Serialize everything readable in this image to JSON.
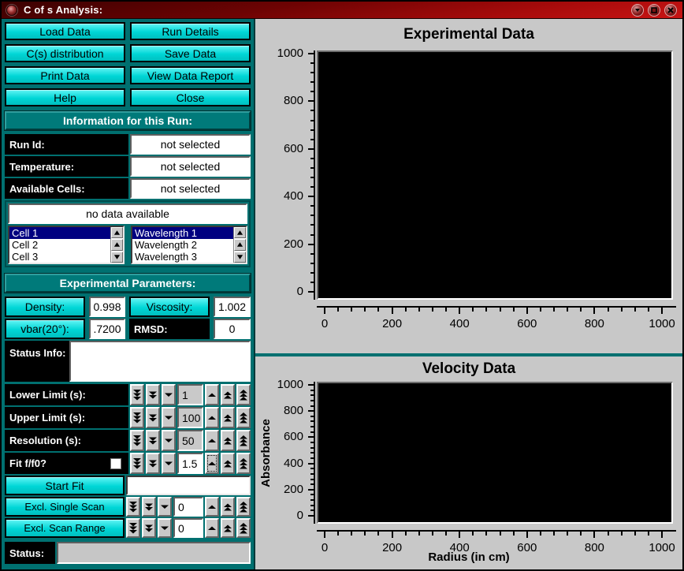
{
  "window": {
    "title": "C of s Analysis:",
    "controls": [
      {
        "icon": "shade-icon"
      },
      {
        "icon": "maximize-icon"
      },
      {
        "icon": "close-icon"
      }
    ]
  },
  "colors": {
    "titlebar_red": "#a80b0b",
    "panel_teal": "#007070",
    "button_cyan": "#00d6d6",
    "selection_navy": "#000080",
    "canvas_black": "#000000",
    "window_gray": "#c8c8c8"
  },
  "toolbar": {
    "buttons": [
      "Load Data",
      "Run Details",
      "C(s) distribution",
      "Save Data",
      "Print Data",
      "View Data Report",
      "Help",
      "Close"
    ]
  },
  "run_info": {
    "header": "Information for this Run:",
    "fields": [
      {
        "label": "Run Id:",
        "value": "not selected"
      },
      {
        "label": "Temperature:",
        "value": "not selected"
      },
      {
        "label": "Available Cells:",
        "value": "not selected"
      }
    ],
    "no_data": "no data available",
    "cells": {
      "items": [
        "Cell 1",
        "Cell 2",
        "Cell 3"
      ],
      "selected": "Cell 1"
    },
    "wavelengths": {
      "items": [
        "Wavelength 1",
        "Wavelength 2",
        "Wavelength 3"
      ],
      "selected": "Wavelength 1"
    }
  },
  "exp_params": {
    "header": "Experimental Parameters:",
    "density_label": "Density:",
    "density_value": "0.998",
    "viscosity_label": "Viscosity:",
    "viscosity_value": "1.002",
    "vbar_label": "vbar(20°):",
    "vbar_value": ".7200",
    "rmsd_label": "RMSD:",
    "rmsd_value": "0",
    "status_info_label": "Status Info:",
    "status_info_value": "",
    "counters": [
      {
        "label": "Lower Limit (s):",
        "value": "1",
        "field": "gray"
      },
      {
        "label": "Upper Limit (s):",
        "value": "100",
        "field": "gray"
      },
      {
        "label": "Resolution (s):",
        "value": "50",
        "field": "gray"
      },
      {
        "label": "Fit f/f0?",
        "value": "1.5",
        "field": "white",
        "checkbox": true,
        "checked": false,
        "focused_up_button": true
      }
    ],
    "start_fit": {
      "label": "Start Fit",
      "field_value": ""
    },
    "excl_counters": [
      {
        "label": "Excl. Single Scan",
        "value": "0",
        "field": "white"
      },
      {
        "label": "Excl. Scan Range",
        "value": "0",
        "field": "white"
      }
    ],
    "status": {
      "label": "Status:",
      "value": ""
    }
  },
  "chart_data": [
    {
      "type": "scatter",
      "title": "Experimental Data",
      "xlabel": "",
      "ylabel": "",
      "xlim": [
        0,
        1000
      ],
      "ylim": [
        0,
        1000
      ],
      "x_ticks": [
        0,
        200,
        400,
        600,
        800,
        1000
      ],
      "y_ticks": [
        0,
        200,
        400,
        600,
        800,
        1000
      ],
      "minor_ticks_per_interval": 4,
      "grid": false,
      "legend": "none",
      "series": [],
      "note": "empty plot - no data loaded"
    },
    {
      "type": "scatter",
      "title": "Velocity Data",
      "xlabel": "Radius (in cm)",
      "ylabel": "Absorbance",
      "xlim": [
        0,
        1000
      ],
      "ylim": [
        0,
        1000
      ],
      "x_ticks": [
        0,
        200,
        400,
        600,
        800,
        1000
      ],
      "y_ticks": [
        0,
        200,
        400,
        600,
        800,
        1000
      ],
      "minor_ticks_per_interval": 4,
      "grid": false,
      "legend": "none",
      "series": [],
      "note": "empty plot - no data loaded"
    }
  ]
}
